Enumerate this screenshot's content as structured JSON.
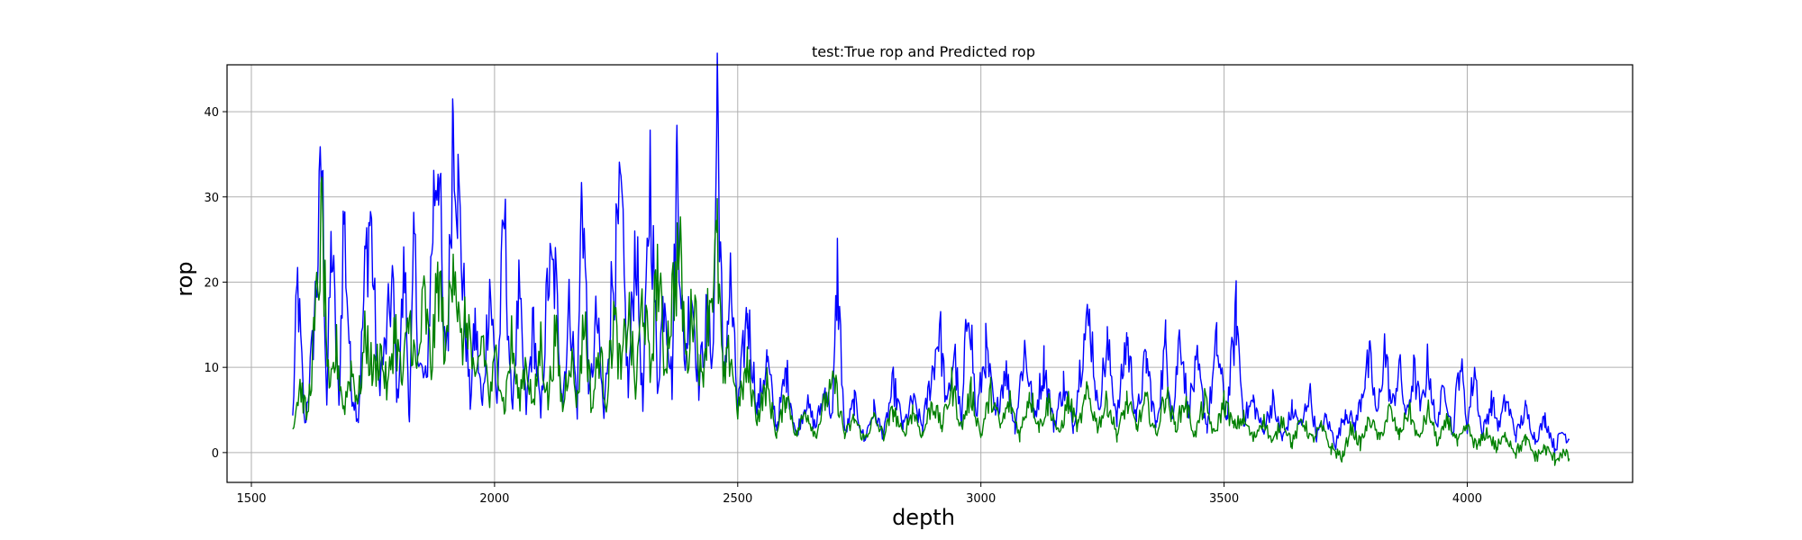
{
  "chart_data": {
    "type": "line",
    "title": "test:True rop and Predicted rop",
    "xlabel": "depth",
    "ylabel": "rop",
    "xlim": [
      1450,
      4340
    ],
    "ylim": [
      -3.5,
      45.5
    ],
    "xticks": [
      1500,
      2000,
      2500,
      3000,
      3500,
      4000
    ],
    "yticks": [
      0,
      10,
      20,
      30,
      40
    ],
    "grid": true,
    "legend": "none",
    "x_range": [
      1585,
      4210
    ],
    "series": [
      {
        "color": "#0000ff",
        "points": [
          [
            1585,
            4
          ],
          [
            1595,
            19.8
          ],
          [
            1610,
            3
          ],
          [
            1625,
            12
          ],
          [
            1635,
            20.8
          ],
          [
            1645,
            34.3
          ],
          [
            1655,
            6
          ],
          [
            1665,
            25
          ],
          [
            1680,
            5
          ],
          [
            1690,
            28.4
          ],
          [
            1705,
            8
          ],
          [
            1720,
            4
          ],
          [
            1735,
            22.5
          ],
          [
            1745,
            28.1
          ],
          [
            1760,
            8
          ],
          [
            1775,
            12
          ],
          [
            1790,
            20
          ],
          [
            1800,
            6
          ],
          [
            1815,
            22
          ],
          [
            1825,
            4
          ],
          [
            1835,
            24.5
          ],
          [
            1845,
            10
          ],
          [
            1860,
            8
          ],
          [
            1875,
            30
          ],
          [
            1885,
            36.9
          ],
          [
            1895,
            12
          ],
          [
            1905,
            15
          ],
          [
            1915,
            42.4
          ],
          [
            1925,
            30.4
          ],
          [
            1935,
            20
          ],
          [
            1950,
            6
          ],
          [
            1960,
            15
          ],
          [
            1975,
            5
          ],
          [
            1990,
            20.4
          ],
          [
            2005,
            6
          ],
          [
            2020,
            27.8
          ],
          [
            2035,
            5
          ],
          [
            2050,
            18
          ],
          [
            2065,
            5
          ],
          [
            2080,
            15
          ],
          [
            2095,
            4
          ],
          [
            2110,
            20.5
          ],
          [
            2125,
            20.3
          ],
          [
            2140,
            6
          ],
          [
            2155,
            18
          ],
          [
            2170,
            5
          ],
          [
            2180,
            33
          ],
          [
            2195,
            6
          ],
          [
            2210,
            16
          ],
          [
            2225,
            4
          ],
          [
            2240,
            18.7
          ],
          [
            2250,
            23
          ],
          [
            2260,
            28.9
          ],
          [
            2275,
            7
          ],
          [
            2290,
            26
          ],
          [
            2305,
            5
          ],
          [
            2320,
            33.6
          ],
          [
            2335,
            8
          ],
          [
            2350,
            20
          ],
          [
            2365,
            8
          ],
          [
            2375,
            34.9
          ],
          [
            2390,
            10
          ],
          [
            2405,
            20
          ],
          [
            2420,
            8
          ],
          [
            2435,
            15
          ],
          [
            2450,
            12
          ],
          [
            2458,
            43.3
          ],
          [
            2470,
            8
          ],
          [
            2485,
            20
          ],
          [
            2500,
            5
          ],
          [
            2520,
            16.6
          ],
          [
            2540,
            5
          ],
          [
            2560,
            10.8
          ],
          [
            2580,
            3
          ],
          [
            2600,
            9.5
          ],
          [
            2620,
            2
          ],
          [
            2640,
            6
          ],
          [
            2660,
            3
          ],
          [
            2680,
            7.4
          ],
          [
            2695,
            4
          ],
          [
            2705,
            21.4
          ],
          [
            2720,
            2
          ],
          [
            2740,
            6
          ],
          [
            2760,
            1.5
          ],
          [
            2780,
            5
          ],
          [
            2800,
            2
          ],
          [
            2820,
            8
          ],
          [
            2840,
            3
          ],
          [
            2860,
            6
          ],
          [
            2880,
            3
          ],
          [
            2900,
            9.6
          ],
          [
            2915,
            14.8
          ],
          [
            2930,
            5
          ],
          [
            2945,
            12
          ],
          [
            2960,
            3
          ],
          [
            2975,
            19.8
          ],
          [
            2990,
            4
          ],
          [
            3010,
            12
          ],
          [
            3030,
            4
          ],
          [
            3050,
            10
          ],
          [
            3070,
            3
          ],
          [
            3090,
            12.5
          ],
          [
            3110,
            4
          ],
          [
            3130,
            10.4
          ],
          [
            3150,
            3
          ],
          [
            3170,
            8
          ],
          [
            3190,
            3
          ],
          [
            3210,
            13
          ],
          [
            3225,
            15.6
          ],
          [
            3240,
            5
          ],
          [
            3260,
            12.4
          ],
          [
            3280,
            4
          ],
          [
            3300,
            13.5
          ],
          [
            3320,
            4
          ],
          [
            3340,
            11
          ],
          [
            3360,
            3
          ],
          [
            3380,
            12.7
          ],
          [
            3395,
            4
          ],
          [
            3410,
            15
          ],
          [
            3425,
            5
          ],
          [
            3445,
            10
          ],
          [
            3465,
            3
          ],
          [
            3485,
            12.6
          ],
          [
            3505,
            4
          ],
          [
            3525,
            16.3
          ],
          [
            3540,
            4
          ],
          [
            3560,
            6
          ],
          [
            3580,
            2.5
          ],
          [
            3600,
            6
          ],
          [
            3620,
            1.5
          ],
          [
            3640,
            5
          ],
          [
            3660,
            3
          ],
          [
            3675,
            7.4
          ],
          [
            3690,
            2
          ],
          [
            3710,
            4
          ],
          [
            3730,
            1
          ],
          [
            3750,
            5
          ],
          [
            3770,
            3
          ],
          [
            3790,
            9
          ],
          [
            3800,
            10.5
          ],
          [
            3815,
            4
          ],
          [
            3830,
            12.4
          ],
          [
            3845,
            5
          ],
          [
            3860,
            10
          ],
          [
            3875,
            4
          ],
          [
            3890,
            9.5
          ],
          [
            3905,
            5
          ],
          [
            3920,
            10.8
          ],
          [
            3935,
            3
          ],
          [
            3955,
            8
          ],
          [
            3970,
            2
          ],
          [
            3985,
            11.2
          ],
          [
            4000,
            3
          ],
          [
            4015,
            10
          ],
          [
            4030,
            2
          ],
          [
            4050,
            6
          ],
          [
            4065,
            3
          ],
          [
            4080,
            6.3
          ],
          [
            4100,
            2
          ],
          [
            4120,
            5
          ],
          [
            4140,
            1.5
          ],
          [
            4160,
            4
          ],
          [
            4180,
            0.5
          ],
          [
            4195,
            2.5
          ],
          [
            4210,
            1.5
          ]
        ]
      },
      {
        "color": "#008000",
        "points": [
          [
            1585,
            3
          ],
          [
            1600,
            8
          ],
          [
            1615,
            4
          ],
          [
            1630,
            14
          ],
          [
            1645,
            27
          ],
          [
            1660,
            6
          ],
          [
            1675,
            12
          ],
          [
            1690,
            5
          ],
          [
            1705,
            10
          ],
          [
            1720,
            6
          ],
          [
            1735,
            14
          ],
          [
            1750,
            9
          ],
          [
            1765,
            12
          ],
          [
            1780,
            7
          ],
          [
            1795,
            15
          ],
          [
            1810,
            8
          ],
          [
            1825,
            16
          ],
          [
            1840,
            9
          ],
          [
            1855,
            18
          ],
          [
            1870,
            10
          ],
          [
            1885,
            21
          ],
          [
            1900,
            11
          ],
          [
            1915,
            26
          ],
          [
            1930,
            12
          ],
          [
            1945,
            16
          ],
          [
            1960,
            7
          ],
          [
            1975,
            14
          ],
          [
            1990,
            6
          ],
          [
            2005,
            12
          ],
          [
            2020,
            5
          ],
          [
            2035,
            13
          ],
          [
            2050,
            6
          ],
          [
            2065,
            11
          ],
          [
            2080,
            5
          ],
          [
            2095,
            13
          ],
          [
            2110,
            6
          ],
          [
            2125,
            14
          ],
          [
            2140,
            5
          ],
          [
            2155,
            12
          ],
          [
            2170,
            6
          ],
          [
            2185,
            16
          ],
          [
            2200,
            5
          ],
          [
            2215,
            12
          ],
          [
            2230,
            6
          ],
          [
            2245,
            16
          ],
          [
            2260,
            9
          ],
          [
            2275,
            17
          ],
          [
            2290,
            7
          ],
          [
            2305,
            19
          ],
          [
            2320,
            9
          ],
          [
            2335,
            22
          ],
          [
            2350,
            10
          ],
          [
            2365,
            18
          ],
          [
            2380,
            24
          ],
          [
            2395,
            10
          ],
          [
            2410,
            19
          ],
          [
            2425,
            8
          ],
          [
            2440,
            17
          ],
          [
            2458,
            24
          ],
          [
            2470,
            8
          ],
          [
            2485,
            12
          ],
          [
            2500,
            5
          ],
          [
            2520,
            10
          ],
          [
            2540,
            4
          ],
          [
            2560,
            8
          ],
          [
            2580,
            2
          ],
          [
            2600,
            7
          ],
          [
            2620,
            2
          ],
          [
            2640,
            5
          ],
          [
            2660,
            2
          ],
          [
            2680,
            6
          ],
          [
            2700,
            8
          ],
          [
            2720,
            2
          ],
          [
            2740,
            4
          ],
          [
            2760,
            1.5
          ],
          [
            2780,
            4
          ],
          [
            2800,
            2
          ],
          [
            2820,
            5
          ],
          [
            2840,
            2
          ],
          [
            2860,
            5
          ],
          [
            2880,
            2
          ],
          [
            2900,
            6
          ],
          [
            2920,
            3
          ],
          [
            2940,
            8
          ],
          [
            2960,
            3
          ],
          [
            2980,
            7
          ],
          [
            3000,
            2
          ],
          [
            3020,
            7
          ],
          [
            3040,
            3
          ],
          [
            3060,
            6
          ],
          [
            3080,
            2
          ],
          [
            3100,
            7
          ],
          [
            3120,
            3
          ],
          [
            3140,
            6
          ],
          [
            3160,
            2
          ],
          [
            3180,
            6
          ],
          [
            3200,
            3
          ],
          [
            3220,
            7
          ],
          [
            3240,
            3
          ],
          [
            3260,
            6
          ],
          [
            3280,
            2
          ],
          [
            3300,
            6
          ],
          [
            3320,
            3
          ],
          [
            3340,
            6
          ],
          [
            3360,
            2
          ],
          [
            3380,
            7
          ],
          [
            3400,
            3
          ],
          [
            3420,
            6
          ],
          [
            3440,
            2
          ],
          [
            3460,
            6
          ],
          [
            3480,
            2
          ],
          [
            3500,
            6
          ],
          [
            3520,
            3
          ],
          [
            3540,
            4
          ],
          [
            3560,
            1.5
          ],
          [
            3580,
            4
          ],
          [
            3600,
            1
          ],
          [
            3620,
            4
          ],
          [
            3640,
            1
          ],
          [
            3660,
            4
          ],
          [
            3680,
            1.5
          ],
          [
            3700,
            3
          ],
          [
            3720,
            0.5
          ],
          [
            3745,
            -0.6
          ],
          [
            3760,
            3
          ],
          [
            3780,
            1
          ],
          [
            3800,
            4
          ],
          [
            3820,
            1.5
          ],
          [
            3840,
            5
          ],
          [
            3860,
            2
          ],
          [
            3880,
            5
          ],
          [
            3900,
            1.5
          ],
          [
            3920,
            5
          ],
          [
            3940,
            1
          ],
          [
            3960,
            4
          ],
          [
            3980,
            1
          ],
          [
            4000,
            3
          ],
          [
            4020,
            0.5
          ],
          [
            4040,
            2.5
          ],
          [
            4060,
            0.5
          ],
          [
            4080,
            2
          ],
          [
            4100,
            0
          ],
          [
            4120,
            1.5
          ],
          [
            4140,
            -0.5
          ],
          [
            4160,
            0.5
          ],
          [
            4180,
            -0.8
          ],
          [
            4195,
            0
          ],
          [
            4210,
            -0.7
          ]
        ]
      }
    ]
  }
}
